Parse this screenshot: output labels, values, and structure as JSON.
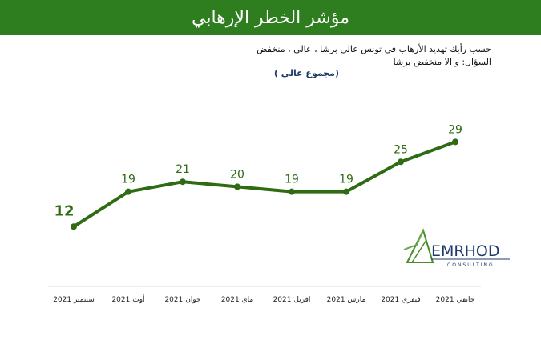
{
  "header": {
    "title": "مؤشر الخطر الإرهابي"
  },
  "question": {
    "label": "السؤال:",
    "line1": "حسب رأيك تهديد الأرهاب في تونس عالي برشا ، عالي ، منخفض",
    "line2": "و الا منخفض برشا",
    "note": "(مجموع عالي )"
  },
  "logo": {
    "name": "EMRHOD",
    "sub": "CONSULTING"
  },
  "colors": {
    "banner": "#2e7d1f",
    "line": "#2e6b12",
    "label": "#2e6b12"
  },
  "chart_data": {
    "type": "line",
    "categories": [
      "سبتمبر 2021",
      "أوت 2021",
      "جوان 2021",
      "ماي 2021",
      "افريل 2021",
      "مارس 2021",
      "فيفري 2021",
      "جانفي 2021"
    ],
    "values": [
      12,
      19,
      21,
      20,
      19,
      19,
      25,
      29
    ],
    "data_labels": [
      "12",
      "19",
      "21",
      "20",
      "19",
      "19",
      "25",
      "29"
    ],
    "title": "",
    "xlabel": "",
    "ylabel": "",
    "ylim": [
      0,
      35
    ],
    "grid": false,
    "legend": "none"
  }
}
